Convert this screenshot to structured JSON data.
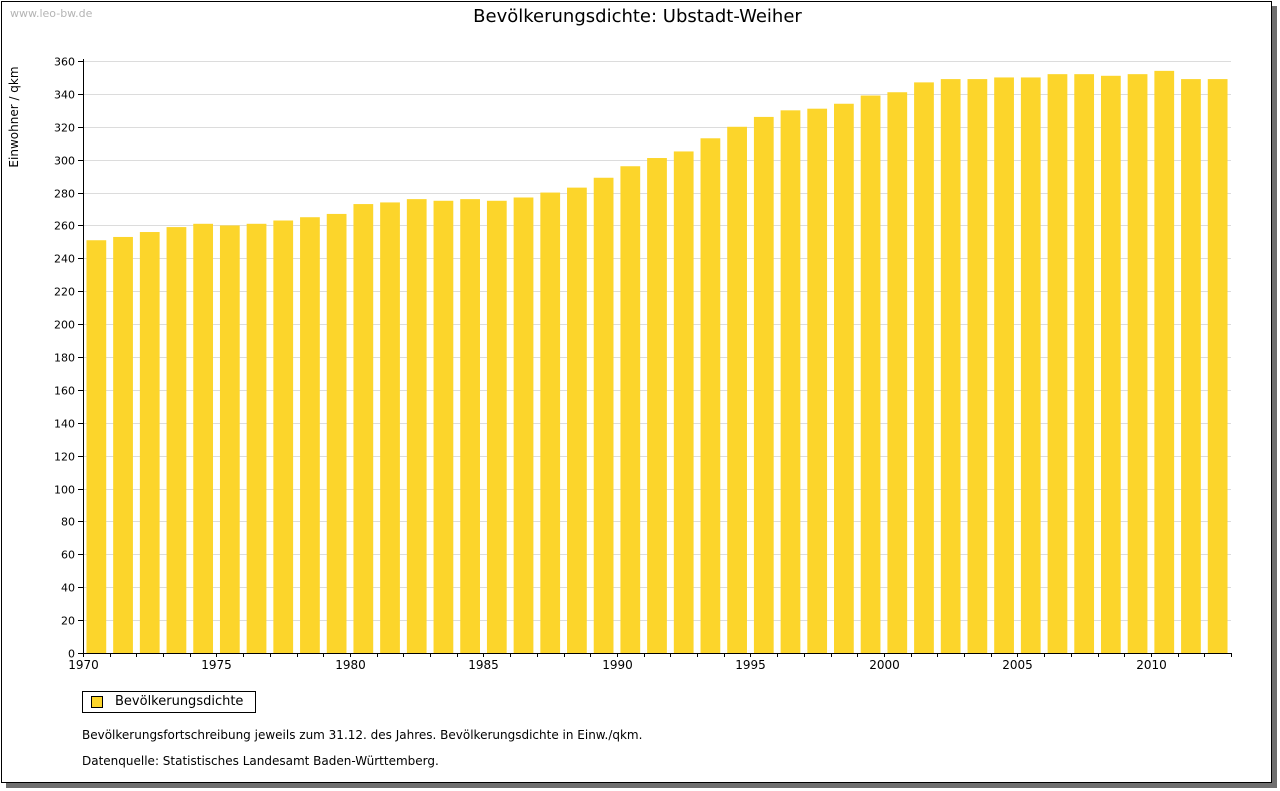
{
  "watermark": "www.leo-bw.de",
  "chart_data": {
    "type": "bar",
    "title": "Bevölkerungsdichte: Ubstadt-Weiher",
    "ylabel": "Einwohner / qkm",
    "xlabel": "",
    "ylim": [
      0,
      360
    ],
    "ytick_step": 20,
    "categories": [
      1970,
      1971,
      1972,
      1973,
      1974,
      1975,
      1976,
      1977,
      1978,
      1979,
      1980,
      1981,
      1982,
      1983,
      1984,
      1985,
      1986,
      1987,
      1988,
      1989,
      1990,
      1991,
      1992,
      1993,
      1994,
      1995,
      1996,
      1997,
      1998,
      1999,
      2000,
      2001,
      2002,
      2003,
      2004,
      2005,
      2006,
      2007,
      2008,
      2009,
      2010,
      2011,
      2012
    ],
    "xtick_labels": [
      "1970",
      "1975",
      "1980",
      "1985",
      "1990",
      "1995",
      "2000",
      "2005",
      "2010"
    ],
    "series": [
      {
        "name": "Bevölkerungsdichte",
        "color": "#fcd52b",
        "values": [
          251,
          253,
          256,
          259,
          261,
          260,
          261,
          263,
          265,
          267,
          273,
          274,
          276,
          275,
          276,
          275,
          277,
          280,
          283,
          289,
          296,
          301,
          305,
          313,
          320,
          326,
          330,
          331,
          334,
          339,
          341,
          347,
          349,
          349,
          350,
          350,
          352,
          352,
          351,
          352,
          354,
          349,
          349
        ]
      }
    ],
    "grid": true,
    "legend": "bottom-left"
  },
  "legend": {
    "label": "Bevölkerungsdichte"
  },
  "notes": {
    "line1": "Bevölkerungsfortschreibung jeweils zum 31.12. des Jahres. Bevölkerungsdichte in Einw./qkm.",
    "line2": "Datenquelle: Statistisches Landesamt Baden-Württemberg."
  }
}
